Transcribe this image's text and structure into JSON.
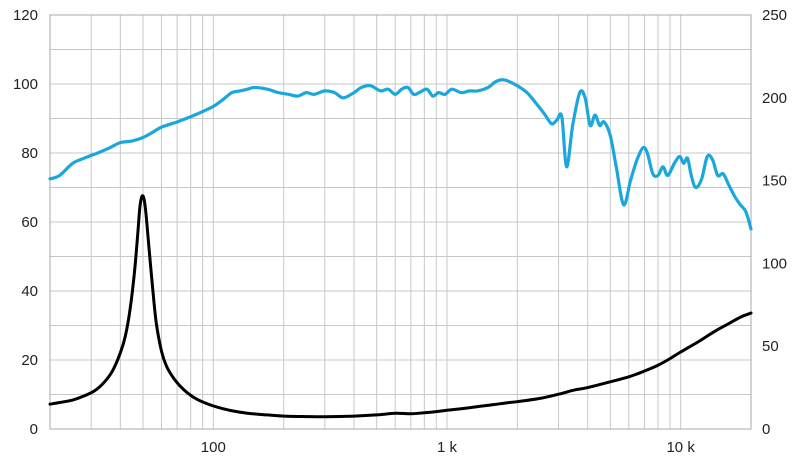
{
  "chart_data": {
    "type": "line",
    "x_scale": "log",
    "xlim": [
      20,
      20000
    ],
    "ylim_left": [
      0,
      120
    ],
    "ylim_right": [
      0,
      250
    ],
    "grid": true,
    "x_tick_labels": [
      {
        "value": 100,
        "label": "100"
      },
      {
        "value": 1000,
        "label": "1 k"
      },
      {
        "value": 10000,
        "label": "10 k"
      }
    ],
    "y_left_ticks": [
      "0",
      "20",
      "40",
      "60",
      "80",
      "100",
      "120"
    ],
    "y_right_ticks": [
      "0",
      "50",
      "100",
      "150",
      "200",
      "250"
    ],
    "colors": {
      "frequency_response": "#1aa7dc",
      "impedance": "#000000",
      "grid": "#c8c8c8"
    },
    "series": [
      {
        "axis": "left",
        "color": "#1aa7dc",
        "points": [
          [
            20,
            72.5
          ],
          [
            22,
            73.5
          ],
          [
            25,
            77
          ],
          [
            28,
            78.5
          ],
          [
            32,
            80
          ],
          [
            36,
            81.5
          ],
          [
            40,
            83
          ],
          [
            45,
            83.5
          ],
          [
            50,
            84.5
          ],
          [
            55,
            86
          ],
          [
            60,
            87.5
          ],
          [
            70,
            89
          ],
          [
            80,
            90.5
          ],
          [
            90,
            92
          ],
          [
            100,
            93.5
          ],
          [
            110,
            95.5
          ],
          [
            120,
            97.5
          ],
          [
            130,
            98
          ],
          [
            140,
            98.5
          ],
          [
            150,
            99
          ],
          [
            170,
            98.5
          ],
          [
            190,
            97.5
          ],
          [
            210,
            97
          ],
          [
            230,
            96.5
          ],
          [
            250,
            97.5
          ],
          [
            270,
            97
          ],
          [
            300,
            98
          ],
          [
            330,
            97.5
          ],
          [
            360,
            96
          ],
          [
            400,
            97.5
          ],
          [
            430,
            99
          ],
          [
            470,
            99.5
          ],
          [
            520,
            98
          ],
          [
            560,
            98.5
          ],
          [
            600,
            97
          ],
          [
            640,
            98.5
          ],
          [
            680,
            99
          ],
          [
            720,
            97
          ],
          [
            760,
            97.5
          ],
          [
            820,
            98.5
          ],
          [
            870,
            96.5
          ],
          [
            920,
            97.5
          ],
          [
            980,
            97
          ],
          [
            1050,
            98.5
          ],
          [
            1150,
            97.5
          ],
          [
            1250,
            98
          ],
          [
            1350,
            98
          ],
          [
            1500,
            99
          ],
          [
            1600,
            100.5
          ],
          [
            1700,
            101.2
          ],
          [
            1800,
            101
          ],
          [
            2000,
            99.5
          ],
          [
            2200,
            97.5
          ],
          [
            2400,
            94.5
          ],
          [
            2600,
            91.5
          ],
          [
            2800,
            88.5
          ],
          [
            2950,
            89.5
          ],
          [
            3100,
            90.5
          ],
          [
            3250,
            76
          ],
          [
            3450,
            88
          ],
          [
            3700,
            97.5
          ],
          [
            3900,
            96
          ],
          [
            4100,
            88
          ],
          [
            4300,
            91
          ],
          [
            4500,
            88
          ],
          [
            4700,
            89
          ],
          [
            5000,
            85
          ],
          [
            5300,
            76
          ],
          [
            5700,
            65
          ],
          [
            6100,
            72
          ],
          [
            6500,
            78
          ],
          [
            6900,
            81.5
          ],
          [
            7200,
            80
          ],
          [
            7600,
            74
          ],
          [
            8000,
            73.5
          ],
          [
            8400,
            76
          ],
          [
            8800,
            73.5
          ],
          [
            9400,
            77
          ],
          [
            9900,
            79
          ],
          [
            10300,
            77
          ],
          [
            10700,
            78.5
          ],
          [
            11100,
            73.5
          ],
          [
            11600,
            70
          ],
          [
            12300,
            72.5
          ],
          [
            13000,
            79
          ],
          [
            13700,
            78
          ],
          [
            14400,
            73.5
          ],
          [
            15200,
            74
          ],
          [
            16000,
            71
          ],
          [
            17000,
            67.5
          ],
          [
            18000,
            65
          ],
          [
            19000,
            63
          ],
          [
            20000,
            58
          ]
        ]
      },
      {
        "axis": "right",
        "color": "#000000",
        "points": [
          [
            20,
            15
          ],
          [
            22,
            16
          ],
          [
            25,
            17.5
          ],
          [
            28,
            20
          ],
          [
            31,
            23
          ],
          [
            34,
            28
          ],
          [
            37,
            35
          ],
          [
            40,
            46
          ],
          [
            42,
            56
          ],
          [
            44,
            72
          ],
          [
            46,
            95
          ],
          [
            47.5,
            118
          ],
          [
            48.5,
            134
          ],
          [
            49.5,
            140.5
          ],
          [
            50.5,
            139
          ],
          [
            51.5,
            130
          ],
          [
            53,
            110
          ],
          [
            55,
            85
          ],
          [
            57,
            64
          ],
          [
            60,
            47
          ],
          [
            63,
            38
          ],
          [
            67,
            31.5
          ],
          [
            72,
            26
          ],
          [
            78,
            21.5
          ],
          [
            85,
            18
          ],
          [
            95,
            15
          ],
          [
            105,
            13
          ],
          [
            120,
            11
          ],
          [
            140,
            9.5
          ],
          [
            170,
            8.5
          ],
          [
            200,
            7.8
          ],
          [
            250,
            7.5
          ],
          [
            300,
            7.4
          ],
          [
            400,
            7.8
          ],
          [
            500,
            8.5
          ],
          [
            600,
            9.5
          ],
          [
            700,
            9.2
          ],
          [
            800,
            9.8
          ],
          [
            900,
            10.5
          ],
          [
            1000,
            11.3
          ],
          [
            1200,
            12.5
          ],
          [
            1400,
            13.8
          ],
          [
            1600,
            14.8
          ],
          [
            1800,
            15.8
          ],
          [
            2000,
            16.5
          ],
          [
            2500,
            18.5
          ],
          [
            3000,
            21
          ],
          [
            3500,
            23.5
          ],
          [
            4000,
            25
          ],
          [
            5000,
            28.5
          ],
          [
            6000,
            31.5
          ],
          [
            7000,
            35
          ],
          [
            8000,
            38.5
          ],
          [
            9000,
            42.5
          ],
          [
            10000,
            46.5
          ],
          [
            12000,
            53
          ],
          [
            14000,
            59
          ],
          [
            16000,
            63.5
          ],
          [
            18000,
            67.5
          ],
          [
            20000,
            70
          ]
        ]
      }
    ]
  }
}
